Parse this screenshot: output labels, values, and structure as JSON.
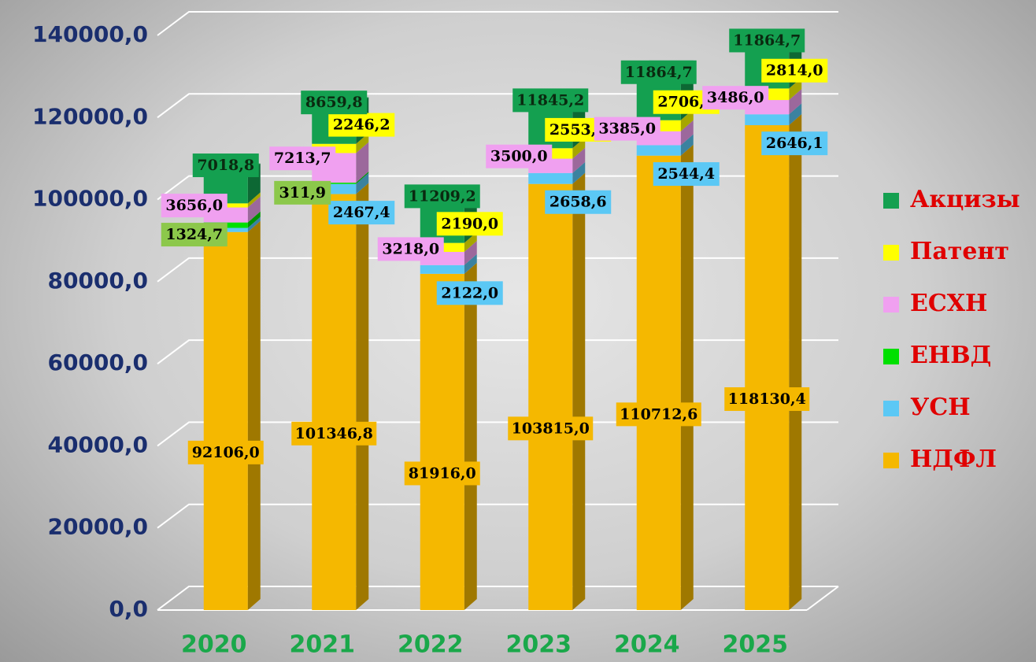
{
  "chart_data": {
    "type": "bar3d_stacked",
    "categories": [
      "2020",
      "2021",
      "2022",
      "2023",
      "2024",
      "2025"
    ],
    "series": [
      {
        "name": "НДФЛ",
        "color": "#f5b800",
        "values": [
          92106.0,
          101346.8,
          81916.0,
          103815.0,
          110712.6,
          118130.4
        ],
        "value_labels": [
          "92106,0",
          "101346,8",
          "81916,0",
          "103815,0",
          "110712,6",
          "118130,4"
        ]
      },
      {
        "name": "УСН",
        "color": "#5bc8f5",
        "values": [
          1000,
          2467.4,
          2122.0,
          2658.6,
          2544.4,
          2646.1
        ],
        "value_labels": [
          null,
          "2467,4",
          "2122,0",
          "2658,6",
          "2544,4",
          "2646,1"
        ]
      },
      {
        "name": "ЕНВД",
        "color": "#00e000",
        "values": [
          1324.7,
          311.9,
          null,
          null,
          null,
          null
        ],
        "value_labels": [
          "1324,7",
          "311,9",
          null,
          null,
          null,
          null
        ]
      },
      {
        "name": "ЕСХН",
        "color": "#f0a0f0",
        "values": [
          3656.0,
          7213.7,
          3218.0,
          3500.0,
          3385.0,
          3486.0
        ],
        "value_labels": [
          "3656,0",
          "7213,7",
          "3218,0",
          "3500,0",
          "3385,0",
          "3486,0"
        ]
      },
      {
        "name": "Патент",
        "color": "#ffff00",
        "values": [
          1000,
          2246.2,
          2190.0,
          2553.0,
          2706.0,
          2814.0
        ],
        "value_labels": [
          null,
          "2246,2",
          "2190,0",
          "2553,0",
          "2706,0",
          "2814,0"
        ]
      },
      {
        "name": "Акцизы",
        "color": "#14a050",
        "values": [
          7018.8,
          8659.8,
          11209.2,
          11845.2,
          11864.7,
          11864.7
        ],
        "value_labels": [
          "7018,8",
          "8659,8",
          "11209,2",
          "11845,2",
          "11864,7",
          "11864,7"
        ]
      }
    ],
    "ylim": [
      0,
      140000
    ],
    "yticks": [
      {
        "value": 0,
        "label": "0,0"
      },
      {
        "value": 20000,
        "label": "20000,0"
      },
      {
        "value": 40000,
        "label": "40000,0"
      },
      {
        "value": 60000,
        "label": "60000,0"
      },
      {
        "value": 80000,
        "label": "80000,0"
      },
      {
        "value": 100000,
        "label": "100000,0"
      },
      {
        "value": 120000,
        "label": "120000,0"
      },
      {
        "value": 140000,
        "label": "140000,0"
      }
    ],
    "grid": true,
    "legend": "right"
  }
}
